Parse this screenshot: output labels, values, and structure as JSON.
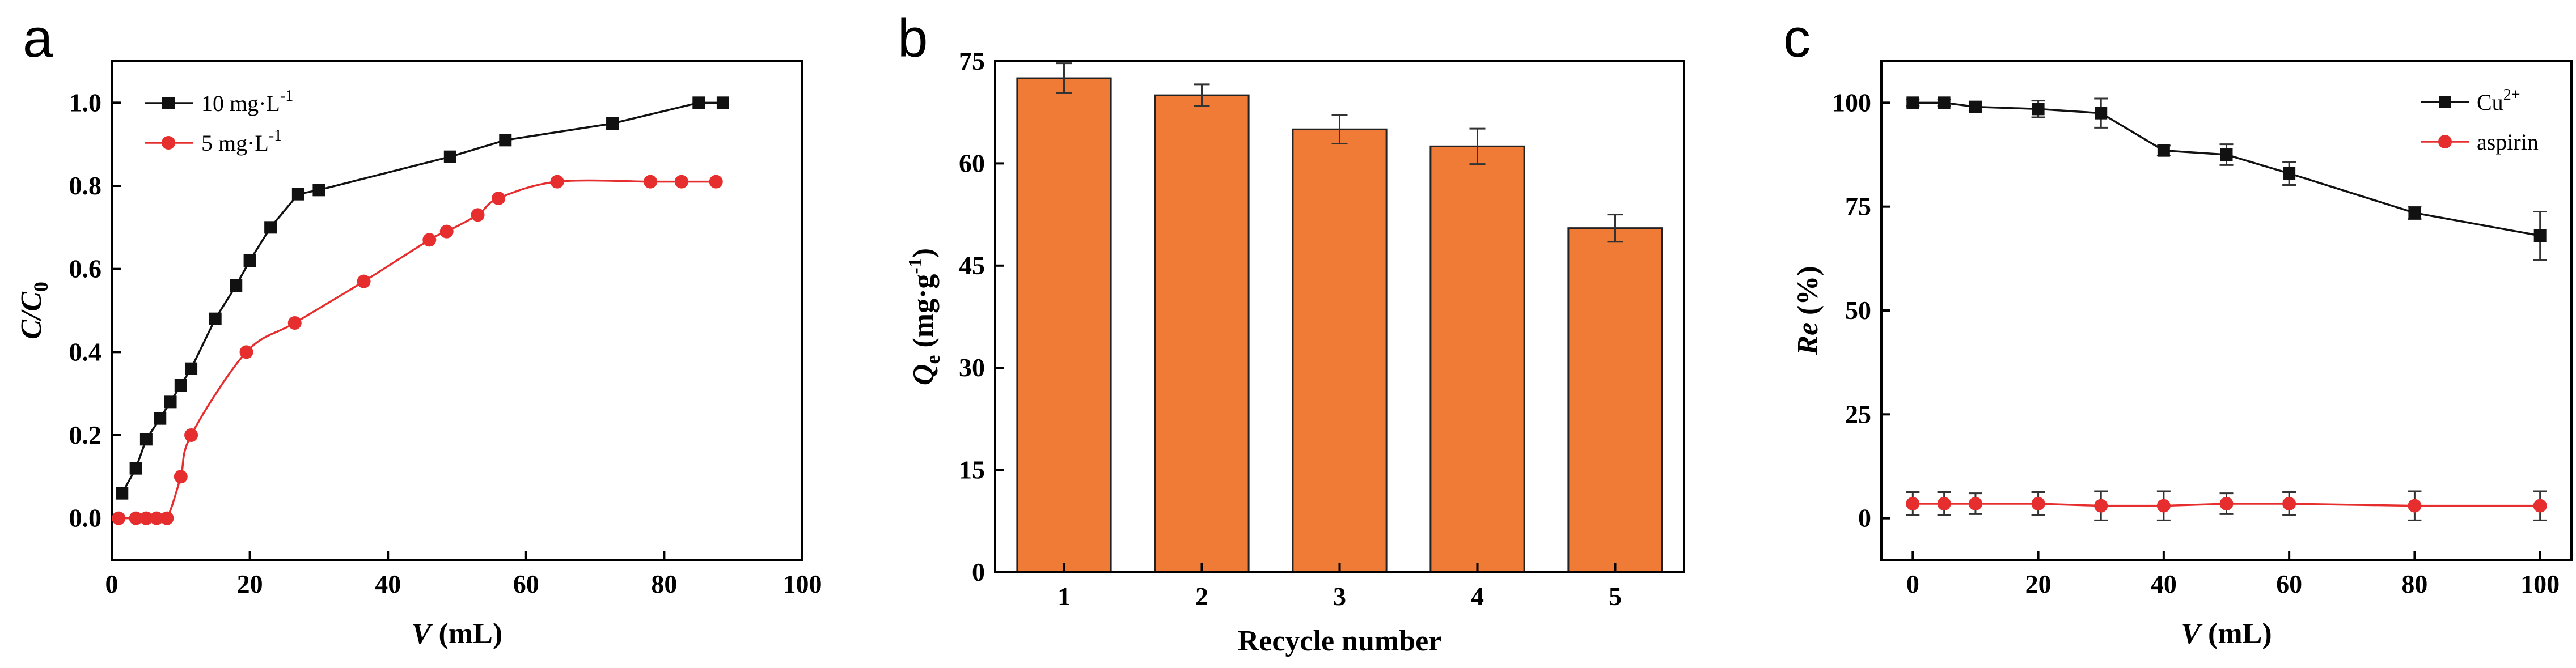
{
  "chart_data": [
    {
      "panel": "a",
      "type": "line",
      "ylabel": {
        "main": "C/C",
        "sub": "0"
      },
      "xlabel": {
        "main": "V",
        "unit": " (mL)"
      },
      "xlim": [
        0,
        100
      ],
      "ylim": [
        -0.1,
        1.1
      ],
      "xticks": [
        0,
        20,
        40,
        60,
        80,
        100
      ],
      "yticks": [
        "0.0",
        "0.2",
        "0.4",
        "0.6",
        "0.8",
        "1.0"
      ],
      "legend_position": "top-left",
      "series": [
        {
          "name": "10 mg·L",
          "name_sup": "-1",
          "color": "#111111",
          "marker": "square",
          "x": [
            1.5,
            3.5,
            5,
            7,
            8.5,
            10,
            11.5,
            15,
            18,
            20,
            23,
            27,
            30,
            49,
            57,
            72.5,
            85,
            88.5
          ],
          "y": [
            0.06,
            0.12,
            0.19,
            0.24,
            0.28,
            0.32,
            0.36,
            0.48,
            0.56,
            0.62,
            0.7,
            0.78,
            0.79,
            0.87,
            0.91,
            0.95,
            1.0,
            1.0
          ]
        },
        {
          "name": "5  mg·L",
          "name_sup": "-1",
          "color": "#e62e2e",
          "marker": "circle",
          "x": [
            1,
            3.5,
            5,
            6.5,
            8,
            10,
            11.5,
            19.5,
            26.5,
            36.5,
            46,
            48.5,
            53,
            56,
            64.5,
            78,
            82.5,
            87.5
          ],
          "y": [
            0.0,
            0.0,
            0.0,
            0.0,
            0.0,
            0.1,
            0.2,
            0.4,
            0.47,
            0.57,
            0.67,
            0.69,
            0.73,
            0.77,
            0.81,
            0.81,
            0.81,
            0.81
          ]
        }
      ]
    },
    {
      "panel": "b",
      "type": "bar",
      "ylabel": {
        "main": "Q",
        "sub": "e",
        "unit": " (mg·g",
        "unit_sup": "-1",
        "close": ")"
      },
      "xlabel": "Recycle number",
      "ylim": [
        0,
        75
      ],
      "yticks": [
        "0",
        "15",
        "30",
        "45",
        "60",
        "75"
      ],
      "categories": [
        "1",
        "2",
        "3",
        "4",
        "5"
      ],
      "values": [
        72.5,
        70,
        65,
        62.5,
        50.5
      ],
      "errors": [
        2.2,
        1.6,
        2.1,
        2.6,
        2.0
      ],
      "color": "#f07b36"
    },
    {
      "panel": "c",
      "type": "line",
      "ylabel": {
        "main": "Re",
        "unit": " (%)"
      },
      "xlabel": {
        "main": "V",
        "unit": " (mL)"
      },
      "xlim": [
        -5,
        105
      ],
      "ylim": [
        -10,
        110
      ],
      "xticks": [
        0,
        20,
        40,
        60,
        80,
        100
      ],
      "yticks": [
        "0",
        "25",
        "50",
        "75",
        "100"
      ],
      "legend_position": "top-right",
      "series": [
        {
          "name": "Cu",
          "name_sup": "2+",
          "color": "#111111",
          "marker": "square",
          "x": [
            0,
            5,
            10,
            20,
            30,
            40,
            50,
            60,
            80,
            100
          ],
          "y": [
            100,
            100,
            99,
            98.5,
            97.5,
            88.5,
            87.5,
            83,
            73.5,
            68
          ],
          "errors": [
            0.8,
            0.8,
            1.0,
            2.0,
            3.5,
            1.2,
            2.5,
            2.8,
            1.5,
            5.8
          ]
        },
        {
          "name": "aspirin",
          "name_sup": "",
          "color": "#e62e2e",
          "marker": "circle",
          "x": [
            0,
            5,
            10,
            20,
            30,
            40,
            50,
            60,
            80,
            100
          ],
          "y": [
            3.5,
            3.5,
            3.5,
            3.5,
            3,
            3,
            3.5,
            3.5,
            3,
            3
          ],
          "errors": [
            2.8,
            2.8,
            2.5,
            2.8,
            3.5,
            3.5,
            2.5,
            2.8,
            3.5,
            3.5
          ]
        }
      ]
    }
  ]
}
